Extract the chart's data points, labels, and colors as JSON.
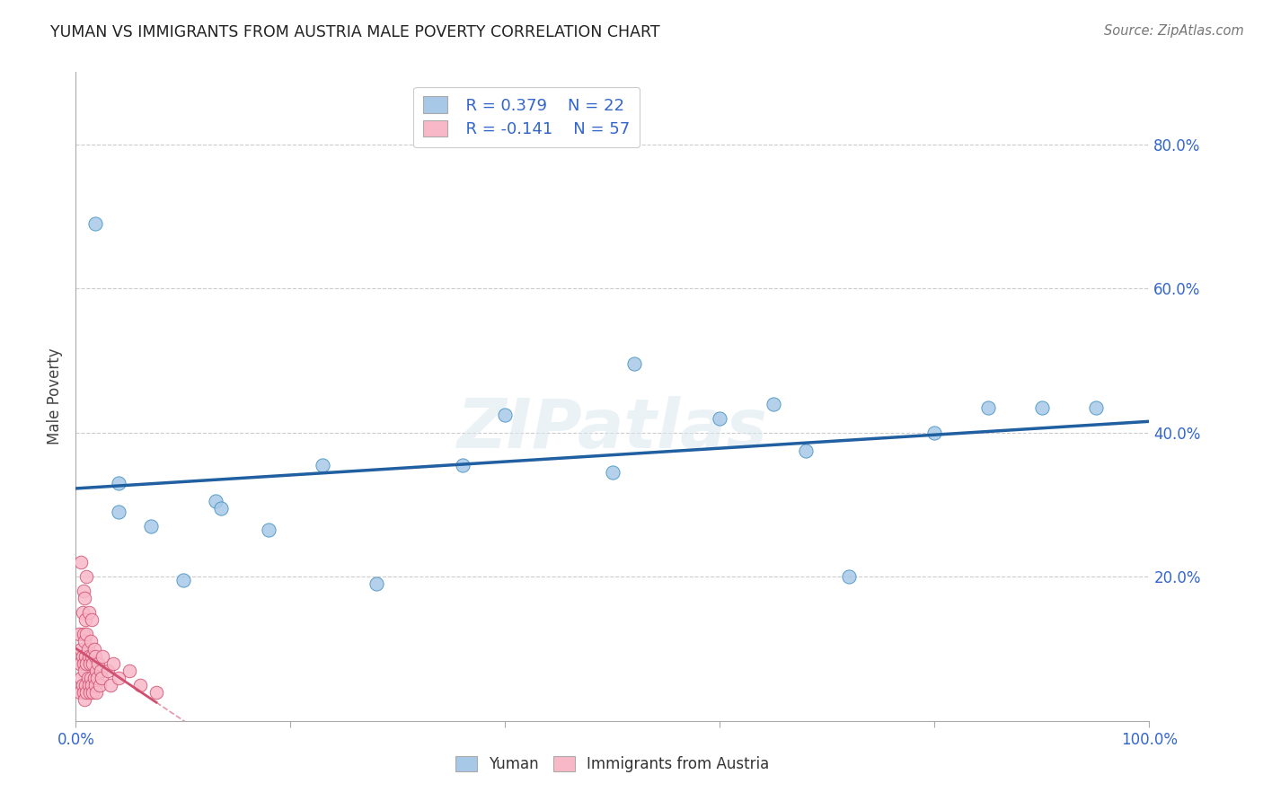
{
  "title": "YUMAN VS IMMIGRANTS FROM AUSTRIA MALE POVERTY CORRELATION CHART",
  "source": "Source: ZipAtlas.com",
  "ylabel": "Male Poverty",
  "xlim": [
    0.0,
    1.0
  ],
  "ylim": [
    0.0,
    0.9
  ],
  "xticks": [
    0.0,
    0.2,
    0.4,
    0.6,
    0.8,
    1.0
  ],
  "xticklabels": [
    "0.0%",
    "",
    "",
    "",
    "",
    "100.0%"
  ],
  "yticks": [
    0.0,
    0.2,
    0.4,
    0.6,
    0.8
  ],
  "yticklabels": [
    "",
    "20.0%",
    "40.0%",
    "60.0%",
    "80.0%"
  ],
  "grid_yticks": [
    0.2,
    0.4,
    0.6,
    0.8
  ],
  "background_color": "#ffffff",
  "blue_color": "#a8c8e8",
  "pink_color": "#f8b8c8",
  "blue_line_color": "#2060a0",
  "pink_line_color": "#d05070",
  "watermark": "ZIPatlas",
  "legend_r_blue": "R = 0.379",
  "legend_n_blue": "N = 22",
  "legend_r_pink": "R = -0.141",
  "legend_n_pink": "N = 57",
  "yuman_x": [
    0.018,
    0.04,
    0.04,
    0.07,
    0.1,
    0.13,
    0.135,
    0.18,
    0.23,
    0.28,
    0.36,
    0.4,
    0.5,
    0.52,
    0.6,
    0.65,
    0.68,
    0.72,
    0.8,
    0.85,
    0.9,
    0.95
  ],
  "yuman_y": [
    0.69,
    0.33,
    0.29,
    0.27,
    0.195,
    0.305,
    0.295,
    0.265,
    0.355,
    0.19,
    0.355,
    0.425,
    0.345,
    0.495,
    0.42,
    0.44,
    0.375,
    0.2,
    0.4,
    0.435,
    0.435,
    0.435
  ],
  "austria_x": [
    0.003,
    0.004,
    0.004,
    0.005,
    0.005,
    0.005,
    0.006,
    0.006,
    0.006,
    0.007,
    0.007,
    0.007,
    0.007,
    0.008,
    0.008,
    0.008,
    0.008,
    0.009,
    0.009,
    0.009,
    0.01,
    0.01,
    0.01,
    0.01,
    0.011,
    0.011,
    0.012,
    0.012,
    0.012,
    0.013,
    0.013,
    0.014,
    0.014,
    0.015,
    0.015,
    0.015,
    0.016,
    0.016,
    0.017,
    0.017,
    0.018,
    0.018,
    0.019,
    0.019,
    0.02,
    0.021,
    0.022,
    0.023,
    0.024,
    0.025,
    0.03,
    0.032,
    0.035,
    0.04,
    0.05,
    0.06,
    0.075
  ],
  "austria_y": [
    0.12,
    0.04,
    0.08,
    0.06,
    0.1,
    0.22,
    0.05,
    0.09,
    0.15,
    0.04,
    0.08,
    0.12,
    0.18,
    0.03,
    0.07,
    0.11,
    0.17,
    0.05,
    0.09,
    0.14,
    0.04,
    0.08,
    0.12,
    0.2,
    0.06,
    0.1,
    0.05,
    0.09,
    0.15,
    0.04,
    0.08,
    0.06,
    0.11,
    0.05,
    0.09,
    0.14,
    0.04,
    0.08,
    0.06,
    0.1,
    0.05,
    0.09,
    0.04,
    0.07,
    0.06,
    0.08,
    0.05,
    0.07,
    0.06,
    0.09,
    0.07,
    0.05,
    0.08,
    0.06,
    0.07,
    0.05,
    0.04
  ]
}
